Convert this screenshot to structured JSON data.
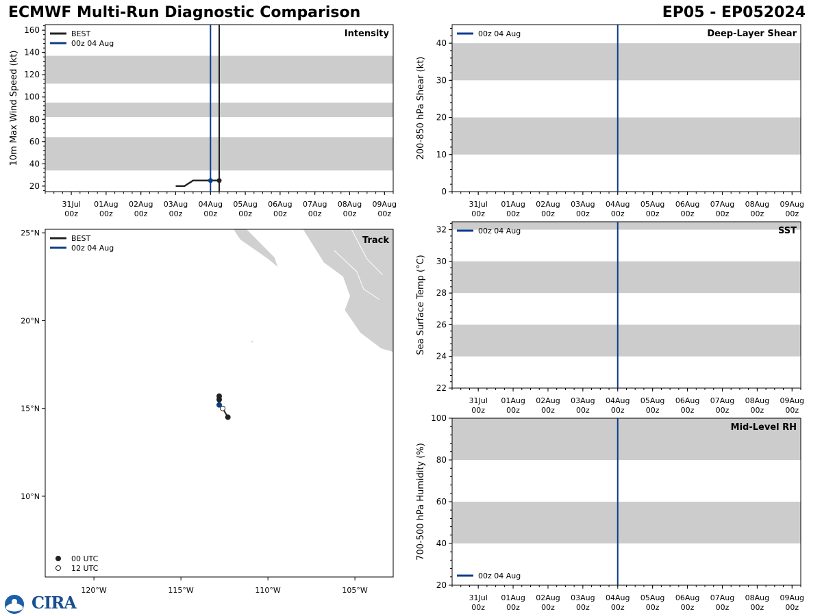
{
  "header": {
    "title": "ECMWF Multi-Run Diagnostic Comparison",
    "storm_id": "EP05 - EP052024"
  },
  "colors": {
    "best": "#222222",
    "run": "#0b3d8c",
    "band": "#cccccc",
    "land": "#d0d0d0",
    "ocean": "#ffffff"
  },
  "time_axis": {
    "tick_labels": [
      "31Jul\n00z",
      "01Aug\n00z",
      "02Aug\n00z",
      "03Aug\n00z",
      "04Aug\n00z",
      "05Aug\n00z",
      "06Aug\n00z",
      "07Aug\n00z",
      "08Aug\n00z",
      "09Aug\n00z"
    ],
    "start_day_offset": -0.75,
    "end_day_offset": 9.25
  },
  "logo": {
    "text": "CIRA",
    "icon": "noaa-icon"
  },
  "chart_data": [
    {
      "id": "intensity",
      "type": "line",
      "title": "Intensity",
      "ylabel": "10m Max Wind Speed (kt)",
      "ylim": [
        15,
        165
      ],
      "yticks": [
        20,
        40,
        60,
        80,
        100,
        120,
        140,
        160
      ],
      "bands": [
        [
          34,
          64
        ],
        [
          82,
          95
        ],
        [
          112,
          137
        ]
      ],
      "legend": [
        "BEST",
        "00z 04 Aug"
      ],
      "vlines": [
        {
          "name": "00z 04 Aug",
          "day": 4.0,
          "color": "run"
        },
        {
          "name": "BEST",
          "day": 4.25,
          "color": "best"
        }
      ],
      "series": [
        {
          "name": "BEST",
          "x_days": [
            3.0,
            3.25,
            3.5,
            3.75,
            4.0,
            4.25
          ],
          "values": [
            20,
            20,
            25,
            25,
            25,
            25
          ]
        },
        {
          "name": "00z 04 Aug",
          "x_days": [
            4.0
          ],
          "values": [
            25
          ]
        }
      ]
    },
    {
      "id": "shear",
      "type": "line",
      "title": "Deep-Layer Shear",
      "ylabel": "200-850 hPa Shear (kt)",
      "ylim": [
        0,
        45
      ],
      "yticks": [
        0,
        10,
        20,
        30,
        40
      ],
      "bands": [
        [
          10,
          20
        ],
        [
          30,
          40
        ]
      ],
      "legend": [
        "00z 04 Aug"
      ],
      "vlines": [
        {
          "name": "00z 04 Aug",
          "day": 4.0,
          "color": "run"
        }
      ],
      "series": []
    },
    {
      "id": "sst",
      "type": "line",
      "title": "SST",
      "ylabel": "Sea Surface Temp (°C)",
      "ylim": [
        22,
        32.5
      ],
      "yticks": [
        22,
        24,
        26,
        28,
        30,
        32
      ],
      "bands": [
        [
          24,
          26
        ],
        [
          28,
          30
        ],
        [
          32,
          34
        ]
      ],
      "legend": [
        "00z 04 Aug"
      ],
      "vlines": [
        {
          "name": "00z 04 Aug",
          "day": 4.0,
          "color": "run"
        }
      ],
      "series": []
    },
    {
      "id": "rh",
      "type": "line",
      "title": "Mid-Level RH",
      "ylabel": "700-500 hPa Humidity (%)",
      "ylim": [
        20,
        100
      ],
      "yticks": [
        20,
        40,
        60,
        80,
        100
      ],
      "bands": [
        [
          40,
          60
        ],
        [
          80,
          100
        ]
      ],
      "legend": [
        "00z 04 Aug"
      ],
      "vlines": [
        {
          "name": "00z 04 Aug",
          "day": 4.0,
          "color": "run"
        }
      ],
      "series": []
    },
    {
      "id": "track",
      "type": "scatter",
      "title": "Track",
      "lon_range": [
        -122.8,
        -102.8
      ],
      "lat_range": [
        5.4,
        25.2
      ],
      "xticks": [
        -120,
        -115,
        -110,
        -105
      ],
      "xtick_labels": [
        "120°W",
        "115°W",
        "110°W",
        "105°W"
      ],
      "yticks": [
        10,
        15,
        20,
        25
      ],
      "ytick_labels": [
        "10°N",
        "15°N",
        "20°N",
        "25°N"
      ],
      "legend": [
        "BEST",
        "00z 04 Aug"
      ],
      "marker_legend": [
        "00 UTC",
        "12 UTC"
      ],
      "best_track": [
        {
          "lon": -112.3,
          "lat": 14.5,
          "utc": "00"
        },
        {
          "lon": -112.6,
          "lat": 15.0,
          "utc": "12"
        },
        {
          "lon": -112.8,
          "lat": 15.2,
          "utc": "00"
        },
        {
          "lon": -112.8,
          "lat": 15.5,
          "utc": "00"
        },
        {
          "lon": -112.8,
          "lat": 15.7,
          "utc": "00"
        }
      ],
      "run_track": [
        {
          "lon": -112.8,
          "lat": 15.2
        }
      ]
    }
  ]
}
